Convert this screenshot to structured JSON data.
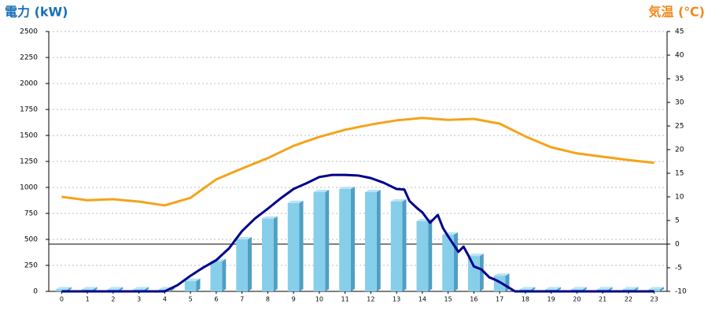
{
  "chart_data": {
    "type": "combo",
    "y_title": "電力 (kW)",
    "y2_title": "気温 (℃)",
    "x": [
      0,
      1,
      2,
      3,
      4,
      5,
      6,
      7,
      8,
      9,
      10,
      11,
      12,
      13,
      14,
      15,
      16,
      17,
      18,
      19,
      20,
      21,
      22,
      23
    ],
    "xlim": [
      -0.5,
      23.5
    ],
    "xticks": [
      0,
      1,
      2,
      3,
      4,
      5,
      6,
      7,
      8,
      9,
      10,
      11,
      12,
      13,
      14,
      15,
      16,
      17,
      18,
      19,
      20,
      21,
      22,
      23
    ],
    "ylim": [
      0,
      2500
    ],
    "yticks": [
      0,
      250,
      500,
      750,
      1000,
      1250,
      1500,
      1750,
      2000,
      2250,
      2500
    ],
    "y2lim": [
      -10,
      45
    ],
    "y2ticks": [
      -10,
      -5,
      0,
      5,
      10,
      15,
      20,
      25,
      30,
      35,
      40,
      45
    ],
    "grid": true,
    "series": [
      {
        "type": "bar",
        "color": "#87ceeb",
        "values": [
          20,
          20,
          20,
          20,
          20,
          100,
          290,
          500,
          700,
          850,
          955,
          985,
          955,
          865,
          675,
          545,
          340,
          150,
          20,
          20,
          20,
          20,
          20,
          20
        ]
      },
      {
        "type": "line",
        "color": "#00008b",
        "x": [
          0,
          1,
          2,
          3,
          4,
          4.5,
          5,
          5.5,
          6,
          6.5,
          7,
          7.5,
          8,
          8.5,
          9,
          9.5,
          10,
          10.5,
          11,
          11.5,
          12,
          12.5,
          13,
          13.3,
          13.5,
          13.8,
          14,
          14.3,
          14.6,
          14.8,
          15,
          15.4,
          15.6,
          15.8,
          16,
          16.3,
          16.6,
          16.8,
          17,
          17.3,
          17.6,
          18,
          19,
          20,
          21,
          22,
          23
        ],
        "values": [
          0,
          0,
          0,
          0,
          0,
          60,
          150,
          230,
          300,
          415,
          580,
          700,
          795,
          895,
          985,
          1040,
          1100,
          1120,
          1120,
          1115,
          1090,
          1045,
          985,
          980,
          870,
          800,
          760,
          660,
          735,
          610,
          530,
          380,
          430,
          340,
          240,
          210,
          135,
          115,
          90,
          45,
          0,
          0,
          0,
          0,
          0,
          0,
          0
        ]
      },
      {
        "type": "line",
        "axis": "y2",
        "color": "#f5a31a",
        "values": [
          10,
          9.3,
          9.5,
          9,
          8.2,
          9.8,
          13.7,
          16,
          18.2,
          20.8,
          22.7,
          24.2,
          25.3,
          26.2,
          26.7,
          26.3,
          26.5,
          25.5,
          22.8,
          20.5,
          19.2,
          18.5,
          17.8,
          17.2
        ]
      }
    ]
  }
}
